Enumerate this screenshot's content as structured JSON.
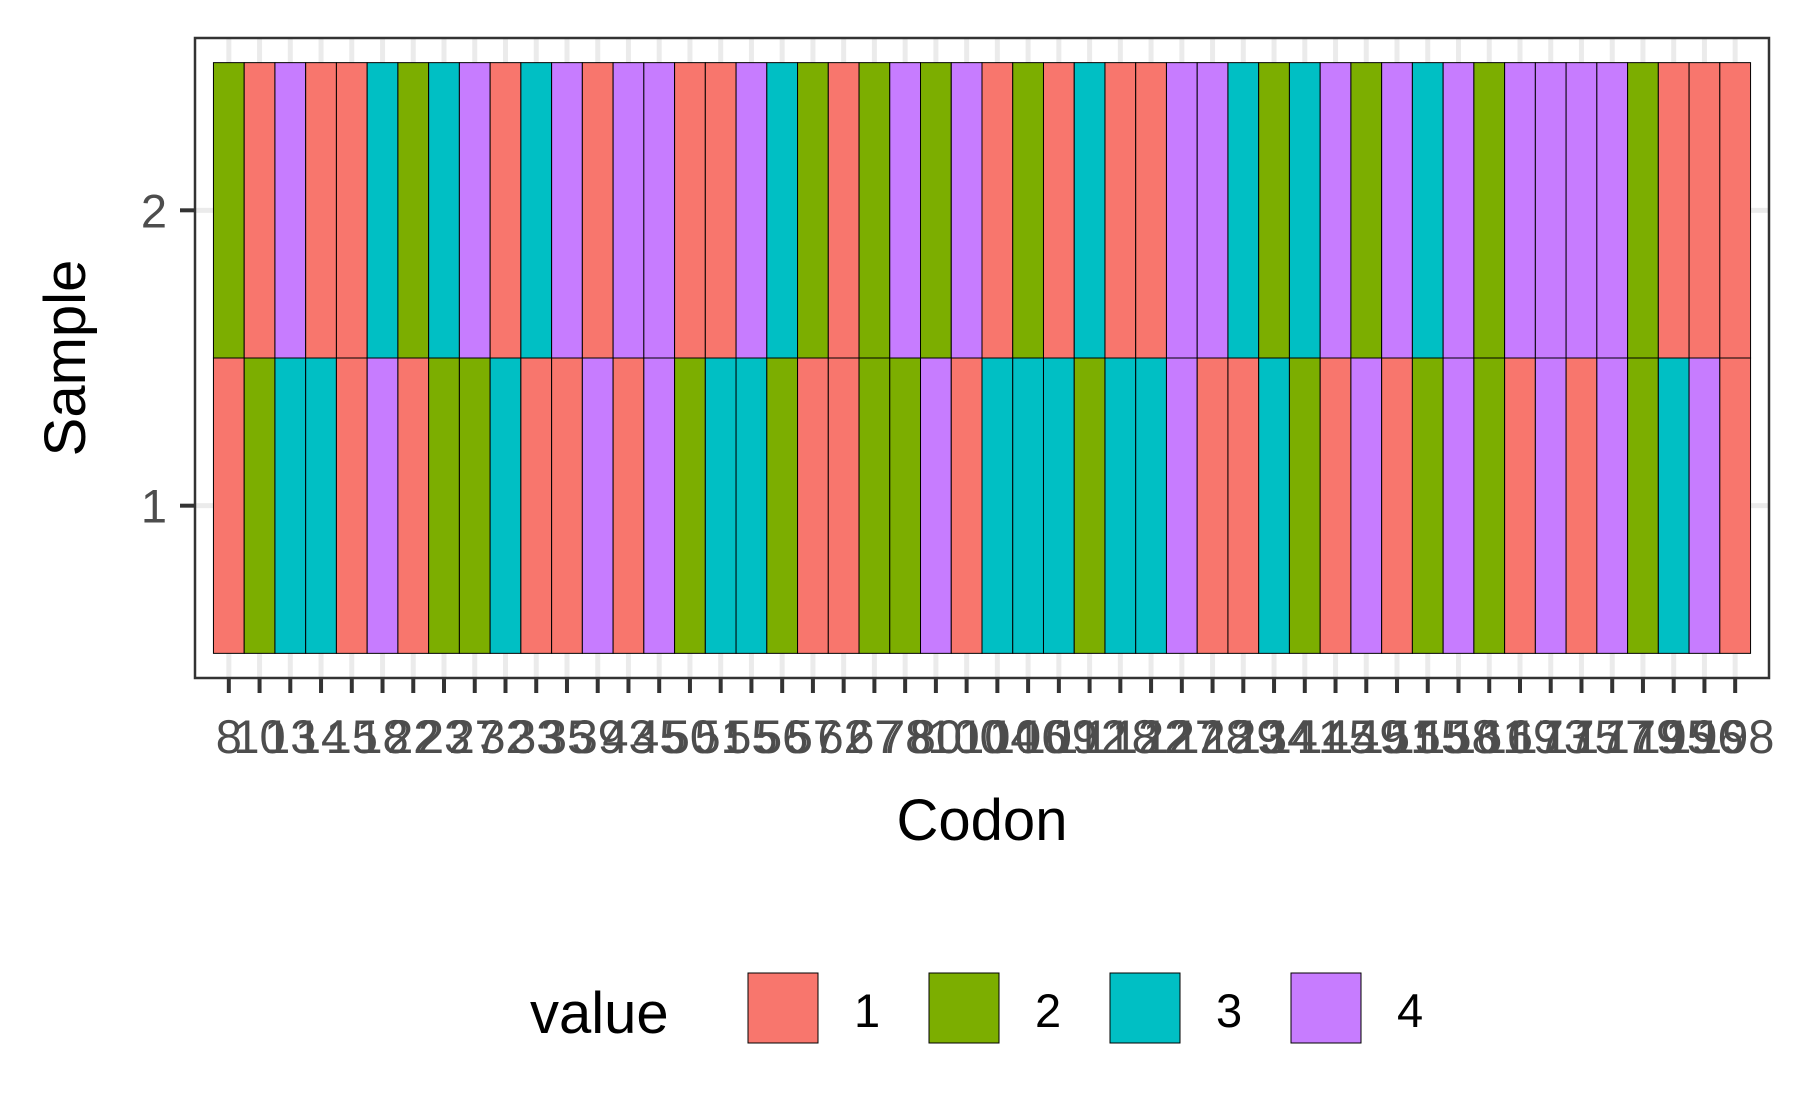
{
  "chart_data": {
    "type": "heatmap",
    "title": "",
    "xlabel": "Codon",
    "ylabel": "Sample",
    "x_categories": [
      "8",
      "10",
      "13",
      "14",
      "15",
      "18",
      "22",
      "23",
      "27",
      "32",
      "33",
      "35",
      "39",
      "43",
      "45",
      "50",
      "51",
      "55",
      "56",
      "57",
      "62",
      "67",
      "78",
      "80",
      "100",
      "104",
      "106",
      "109",
      "112",
      "118",
      "122",
      "127",
      "128",
      "129",
      "134",
      "141",
      "145",
      "149",
      "151",
      "155",
      "158",
      "161",
      "169",
      "173",
      "175",
      "177",
      "179",
      "195",
      "196",
      "198"
    ],
    "y_categories": [
      "1",
      "2"
    ],
    "rows": [
      {
        "sample": "1",
        "values": [
          1,
          2,
          3,
          3,
          1,
          4,
          1,
          2,
          2,
          3,
          1,
          1,
          4,
          1,
          4,
          2,
          3,
          3,
          2,
          1,
          1,
          2,
          2,
          4,
          1,
          3,
          3,
          3,
          2,
          3,
          3,
          4,
          1,
          1,
          3,
          2,
          1,
          4,
          1,
          2,
          4,
          2,
          1,
          4,
          1,
          4,
          2,
          3,
          4,
          1
        ]
      },
      {
        "sample": "2",
        "values": [
          2,
          1,
          4,
          1,
          1,
          3,
          2,
          3,
          4,
          1,
          3,
          4,
          1,
          4,
          4,
          1,
          1,
          4,
          3,
          2,
          1,
          2,
          4,
          2,
          4,
          1,
          2,
          1,
          3,
          1,
          1,
          4,
          4,
          3,
          2,
          3,
          4,
          2,
          4,
          3,
          4,
          2,
          4,
          4,
          4,
          4,
          2,
          1,
          1,
          1
        ]
      }
    ],
    "grid": true,
    "legend": {
      "title": "value",
      "position": "bottom",
      "entries": [
        {
          "label": "1",
          "value": 1,
          "color": "#F8766D"
        },
        {
          "label": "2",
          "value": 2,
          "color": "#7CAE00"
        },
        {
          "label": "3",
          "value": 3,
          "color": "#00BFC4"
        },
        {
          "label": "4",
          "value": 4,
          "color": "#C77CFF"
        }
      ]
    }
  }
}
